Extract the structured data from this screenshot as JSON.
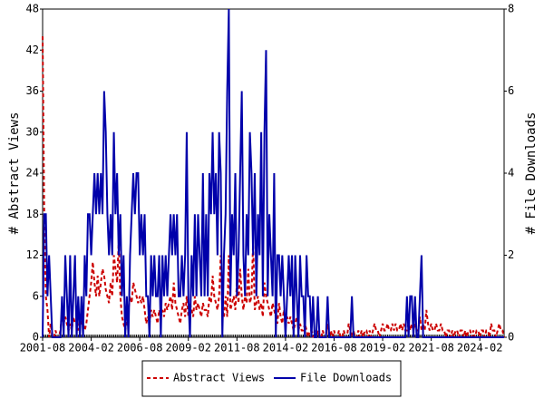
{
  "chart_data": {
    "type": "line",
    "ylabel": "# Abstract Views",
    "y2label": "# File Downloads",
    "x": [
      "2001-08",
      "2001-09",
      "2001-10",
      "2001-11",
      "2001-12",
      "2002-01",
      "2002-02",
      "2002-03",
      "2002-04",
      "2002-05",
      "2002-06",
      "2002-07",
      "2002-08",
      "2002-09",
      "2002-10",
      "2002-11",
      "2002-12",
      "2003-01",
      "2003-02",
      "2003-03",
      "2003-04",
      "2003-05",
      "2003-06",
      "2003-07",
      "2003-08",
      "2003-09",
      "2003-10",
      "2003-11",
      "2003-12",
      "2004-01",
      "2004-02",
      "2004-03",
      "2004-04",
      "2004-05",
      "2004-06",
      "2004-07",
      "2004-08",
      "2004-09",
      "2004-10",
      "2004-11",
      "2004-12",
      "2005-01",
      "2005-02",
      "2005-03",
      "2005-04",
      "2005-05",
      "2005-06",
      "2005-07",
      "2005-08",
      "2005-09",
      "2005-10",
      "2005-11",
      "2005-12",
      "2006-01",
      "2006-02",
      "2006-03",
      "2006-04",
      "2006-05",
      "2006-06",
      "2006-07",
      "2006-08",
      "2006-09",
      "2006-10",
      "2006-11",
      "2006-12",
      "2007-01",
      "2007-02",
      "2007-03",
      "2007-04",
      "2007-05",
      "2007-06",
      "2007-07",
      "2007-08",
      "2007-09",
      "2007-10",
      "2007-11",
      "2007-12",
      "2008-01",
      "2008-02",
      "2008-03",
      "2008-04",
      "2008-05",
      "2008-06",
      "2008-07",
      "2008-08",
      "2008-09",
      "2008-10",
      "2008-11",
      "2008-12",
      "2009-01",
      "2009-02",
      "2009-03",
      "2009-04",
      "2009-05",
      "2009-06",
      "2009-07",
      "2009-08",
      "2009-09",
      "2009-10",
      "2009-11",
      "2009-12",
      "2010-01",
      "2010-02",
      "2010-03",
      "2010-04",
      "2010-05",
      "2010-06",
      "2010-07",
      "2010-08",
      "2010-09",
      "2010-10",
      "2010-11",
      "2010-12",
      "2011-01",
      "2011-02",
      "2011-03",
      "2011-04",
      "2011-05",
      "2011-06",
      "2011-07",
      "2011-08",
      "2011-09",
      "2011-10",
      "2011-11",
      "2011-12",
      "2012-01",
      "2012-02",
      "2012-03",
      "2012-04",
      "2012-05",
      "2012-06",
      "2012-07",
      "2012-08",
      "2012-09",
      "2012-10",
      "2012-11",
      "2012-12",
      "2013-01",
      "2013-02",
      "2013-03",
      "2013-04",
      "2013-05",
      "2013-06",
      "2013-07",
      "2013-08",
      "2013-09",
      "2013-10",
      "2013-11",
      "2013-12",
      "2014-01",
      "2014-02",
      "2014-03",
      "2014-04",
      "2014-05",
      "2014-06",
      "2014-07",
      "2014-08",
      "2014-09",
      "2014-10",
      "2014-11",
      "2014-12",
      "2015-01",
      "2015-02",
      "2015-03",
      "2015-04",
      "2015-05",
      "2015-06",
      "2015-07",
      "2015-08",
      "2015-09",
      "2015-10",
      "2015-11",
      "2015-12",
      "2016-01",
      "2016-02",
      "2016-03",
      "2016-04",
      "2016-05",
      "2016-06",
      "2016-07",
      "2016-08",
      "2016-09",
      "2016-10",
      "2016-11",
      "2016-12",
      "2017-01",
      "2017-02",
      "2017-03",
      "2017-04",
      "2017-05",
      "2017-06",
      "2017-07",
      "2017-08",
      "2017-09",
      "2017-10",
      "2017-11",
      "2017-12",
      "2018-01",
      "2018-02",
      "2018-03",
      "2018-04",
      "2018-05",
      "2018-06",
      "2018-07",
      "2018-08",
      "2018-09",
      "2018-10",
      "2018-11",
      "2018-12",
      "2019-01",
      "2019-02",
      "2019-03",
      "2019-04",
      "2019-05",
      "2019-06",
      "2019-07",
      "2019-08",
      "2019-09",
      "2019-10",
      "2019-11",
      "2019-12",
      "2020-01",
      "2020-02",
      "2020-03",
      "2020-04",
      "2020-05",
      "2020-06",
      "2020-07",
      "2020-08",
      "2020-09",
      "2020-10",
      "2020-11",
      "2020-12",
      "2021-01",
      "2021-02",
      "2021-03",
      "2021-04",
      "2021-05",
      "2021-06",
      "2021-07",
      "2021-08",
      "2021-09",
      "2021-10",
      "2021-11",
      "2021-12",
      "2022-01",
      "2022-02",
      "2022-03",
      "2022-04",
      "2022-05",
      "2022-06",
      "2022-07",
      "2022-08",
      "2022-09",
      "2022-10",
      "2022-11",
      "2022-12",
      "2023-01",
      "2023-02",
      "2023-03",
      "2023-04",
      "2023-05",
      "2023-06",
      "2023-07",
      "2023-08",
      "2023-09",
      "2023-10",
      "2023-11",
      "2023-12",
      "2024-01",
      "2024-02",
      "2024-03",
      "2024-04",
      "2024-05",
      "2024-06",
      "2024-07",
      "2024-08",
      "2024-09",
      "2024-10",
      "2024-11",
      "2024-12",
      "2025-01",
      "2025-02",
      "2025-03",
      "2025-04",
      "2025-05"
    ],
    "xticks": [
      "2001-08",
      "2004-02",
      "2006-08",
      "2009-02",
      "2011-08",
      "2014-02",
      "2016-08",
      "2019-02",
      "2021-08",
      "2024-02"
    ],
    "ylim": [
      0,
      48
    ],
    "yticks": [
      0,
      6,
      12,
      18,
      24,
      30,
      36,
      42,
      48
    ],
    "y2lim": [
      0,
      8
    ],
    "y2ticks": [
      0,
      2,
      4,
      6,
      8
    ],
    "series": [
      {
        "name": "Abstract Views",
        "color": "#cc0000",
        "values": [
          44,
          18,
          6,
          4,
          0,
          2,
          0,
          0,
          1,
          0,
          0,
          1,
          4,
          2,
          3,
          2,
          1,
          2,
          1,
          3,
          2,
          2,
          1,
          3,
          2,
          2,
          1,
          2,
          4,
          6,
          8,
          11,
          8,
          6,
          9,
          6,
          8,
          10,
          9,
          7,
          6,
          5,
          8,
          6,
          12,
          10,
          8,
          14,
          6,
          3,
          2,
          1,
          2,
          4,
          6,
          5,
          8,
          7,
          6,
          5,
          6,
          5,
          6,
          4,
          2,
          3,
          2,
          4,
          3,
          4,
          3,
          2,
          4,
          3,
          4,
          3,
          5,
          4,
          5,
          6,
          4,
          8,
          5,
          4,
          3,
          2,
          4,
          5,
          3,
          6,
          3,
          5,
          4,
          3,
          6,
          4,
          5,
          4,
          3,
          5,
          4,
          4,
          3,
          6,
          5,
          9,
          6,
          5,
          4,
          6,
          12,
          4,
          3,
          6,
          3,
          12,
          4,
          5,
          6,
          4,
          8,
          5,
          10,
          6,
          4,
          6,
          5,
          10,
          5,
          6,
          14,
          4,
          5,
          6,
          4,
          5,
          3,
          8,
          6,
          5,
          4,
          3,
          5,
          4,
          3,
          2,
          5,
          3,
          2,
          4,
          2,
          3,
          2,
          3,
          2,
          1,
          2,
          3,
          1,
          2,
          1,
          1,
          2,
          1,
          0,
          1,
          1,
          0,
          1,
          0,
          1,
          0,
          0,
          1,
          0,
          0,
          2,
          0,
          1,
          0,
          1,
          0,
          0,
          1,
          0,
          0,
          1,
          0,
          0,
          2,
          1,
          0,
          1,
          0,
          0,
          1,
          0,
          1,
          0,
          1,
          1,
          0,
          1,
          0,
          1,
          2,
          1,
          1,
          0,
          1,
          2,
          1,
          1,
          2,
          1,
          1,
          2,
          1,
          2,
          1,
          1,
          2,
          1,
          2,
          1,
          1,
          2,
          1,
          2,
          1,
          2,
          1,
          1,
          3,
          1,
          2,
          1,
          4,
          2,
          1,
          2,
          1,
          1,
          2,
          1,
          1,
          2,
          1,
          1,
          0,
          1,
          1,
          0,
          1,
          0,
          1,
          1,
          0,
          1,
          1,
          0,
          1,
          0,
          1,
          1,
          0,
          1,
          0,
          1,
          1,
          0,
          1,
          1,
          0,
          1,
          1,
          0,
          2,
          1,
          1,
          0,
          1,
          2,
          1,
          1,
          0
        ]
      },
      {
        "name": "File Downloads",
        "color": "#0000aa",
        "axis": "y2",
        "values": [
          0,
          3,
          3,
          1,
          2,
          1,
          0,
          0,
          0,
          0,
          0,
          0,
          1,
          0,
          2,
          1,
          0,
          2,
          0,
          1,
          2,
          0,
          1,
          0,
          1,
          0,
          2,
          1,
          3,
          3,
          2,
          3,
          4,
          3,
          4,
          3,
          4,
          3,
          6,
          5,
          3,
          2,
          3,
          2,
          5,
          3,
          4,
          2,
          3,
          1,
          2,
          0,
          1,
          0,
          2,
          3,
          4,
          3,
          4,
          4,
          2,
          3,
          2,
          3,
          1,
          1,
          0,
          2,
          1,
          2,
          1,
          1,
          2,
          0,
          2,
          1,
          2,
          1,
          2,
          3,
          2,
          3,
          2,
          3,
          1,
          1,
          2,
          1,
          2,
          5,
          1,
          0,
          2,
          1,
          3,
          1,
          3,
          2,
          1,
          4,
          1,
          3,
          1,
          4,
          3,
          5,
          3,
          4,
          2,
          5,
          4,
          0,
          2,
          3,
          6,
          8,
          1,
          3,
          2,
          4,
          1,
          2,
          4,
          6,
          2,
          1,
          3,
          2,
          5,
          4,
          2,
          4,
          1,
          3,
          2,
          5,
          1,
          5,
          7,
          1,
          3,
          2,
          1,
          4,
          0,
          2,
          2,
          1,
          2,
          1,
          0,
          1,
          2,
          1,
          2,
          0,
          2,
          1,
          0,
          2,
          1,
          1,
          0,
          2,
          1,
          1,
          0,
          1,
          0,
          0,
          1,
          0,
          0,
          0,
          0,
          0,
          1,
          0,
          0,
          0,
          0,
          0,
          0,
          0,
          0,
          0,
          0,
          0,
          0,
          0,
          0,
          1,
          0,
          0,
          0,
          0,
          0,
          0,
          0,
          0,
          0,
          0,
          0,
          0,
          0,
          0,
          0,
          0,
          0,
          0,
          0,
          0,
          0,
          0,
          0,
          0,
          0,
          0,
          0,
          0,
          0,
          0,
          0,
          0,
          0,
          1,
          0,
          1,
          1,
          0,
          1,
          0,
          0,
          1,
          2,
          0,
          0,
          0,
          0,
          0,
          0,
          0,
          0,
          0,
          0,
          0,
          0,
          0,
          0,
          0,
          0,
          0,
          0,
          0,
          0,
          0,
          0,
          0,
          0,
          0,
          0,
          0,
          0,
          0,
          0,
          0,
          0,
          0,
          0,
          0,
          0,
          0,
          0,
          0,
          0,
          0,
          0,
          0,
          0,
          0,
          0,
          0,
          0,
          0,
          0,
          0
        ]
      }
    ]
  }
}
